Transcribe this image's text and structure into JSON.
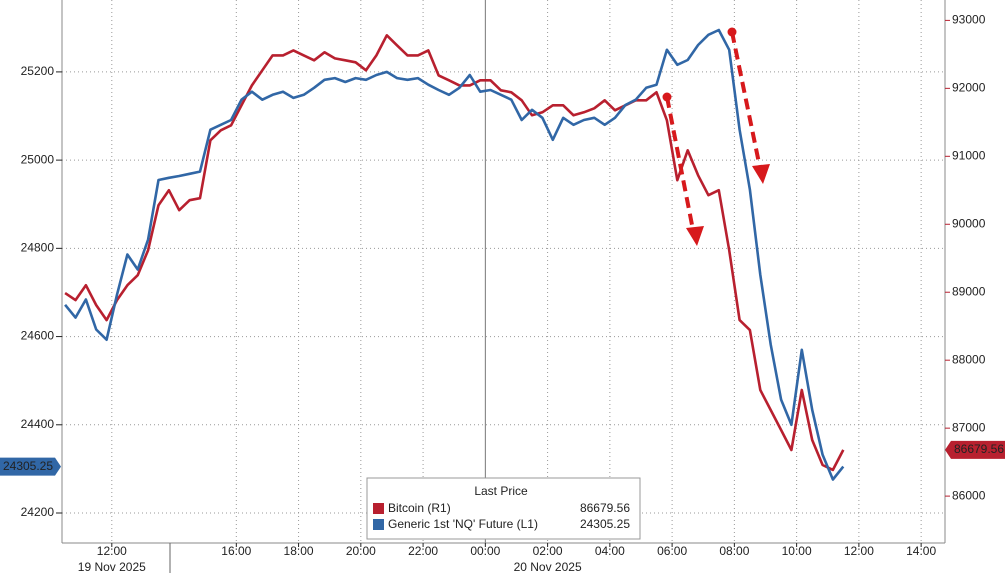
{
  "chart_data": {
    "type": "line",
    "x": [
      "2025-11-19 10:30",
      "2025-11-19 10:50",
      "2025-11-19 11:10",
      "2025-11-19 11:30",
      "2025-11-19 11:50",
      "2025-11-19 12:10",
      "2025-11-19 12:30",
      "2025-11-19 12:50",
      "2025-11-19 13:10",
      "2025-11-19 13:30",
      "2025-11-19 13:50",
      "2025-11-19 14:10",
      "2025-11-19 14:30",
      "2025-11-19 14:50",
      "2025-11-19 15:10",
      "2025-11-19 15:30",
      "2025-11-19 15:50",
      "2025-11-19 16:10",
      "2025-11-19 16:30",
      "2025-11-19 16:50",
      "2025-11-19 17:10",
      "2025-11-19 17:30",
      "2025-11-19 17:50",
      "2025-11-19 18:10",
      "2025-11-19 18:30",
      "2025-11-19 18:50",
      "2025-11-19 19:10",
      "2025-11-19 19:30",
      "2025-11-19 19:50",
      "2025-11-19 20:10",
      "2025-11-19 20:30",
      "2025-11-19 20:50",
      "2025-11-19 21:10",
      "2025-11-19 21:30",
      "2025-11-19 21:50",
      "2025-11-19 22:10",
      "2025-11-19 22:30",
      "2025-11-19 22:50",
      "2025-11-19 23:10",
      "2025-11-19 23:30",
      "2025-11-19 23:50",
      "2025-11-20 00:10",
      "2025-11-20 00:30",
      "2025-11-20 00:50",
      "2025-11-20 01:10",
      "2025-11-20 01:30",
      "2025-11-20 01:50",
      "2025-11-20 02:10",
      "2025-11-20 02:30",
      "2025-11-20 02:50",
      "2025-11-20 03:10",
      "2025-11-20 03:30",
      "2025-11-20 03:50",
      "2025-11-20 04:10",
      "2025-11-20 04:30",
      "2025-11-20 04:50",
      "2025-11-20 05:10",
      "2025-11-20 05:30",
      "2025-11-20 05:50",
      "2025-11-20 06:10",
      "2025-11-20 06:30",
      "2025-11-20 06:50",
      "2025-11-20 07:10",
      "2025-11-20 07:30",
      "2025-11-20 07:50",
      "2025-11-20 08:10",
      "2025-11-20 08:30",
      "2025-11-20 08:50",
      "2025-11-20 09:10",
      "2025-11-20 09:30",
      "2025-11-20 09:50",
      "2025-11-20 10:10",
      "2025-11-20 10:30",
      "2025-11-20 10:50",
      "2025-11-20 11:10",
      "2025-11-20 11:30"
    ],
    "series": [
      {
        "name": "Bitcoin (R1)",
        "color": "#b8202f",
        "axis": "y2",
        "values": [
          88987,
          88884,
          89104,
          88810,
          88590,
          88884,
          89104,
          89251,
          89619,
          90280,
          90501,
          90207,
          90354,
          90383,
          91236,
          91383,
          91456,
          91750,
          92044,
          92265,
          92485,
          92485,
          92559,
          92485,
          92412,
          92530,
          92441,
          92412,
          92383,
          92265,
          92485,
          92780,
          92632,
          92485,
          92485,
          92559,
          92191,
          92118,
          92044,
          92044,
          92118,
          92118,
          91971,
          91942,
          91824,
          91603,
          91648,
          91750,
          91750,
          91603,
          91648,
          91706,
          91824,
          91677,
          91750,
          91824,
          91824,
          91942,
          91530,
          90648,
          91089,
          90721,
          90427,
          90501,
          89619,
          88590,
          88443,
          87561,
          87267,
          86973,
          86679,
          87561,
          86826,
          86458,
          86385,
          86679.56
        ]
      },
      {
        "name": "Generic 1st 'NQ' Future (L1)",
        "color": "#3167a6",
        "axis": "y",
        "values": [
          24672,
          24643,
          24684,
          24616,
          24593,
          24695,
          24786,
          24752,
          24820,
          24955,
          24960,
          24964,
          24969,
          24974,
          25069,
          25080,
          25091,
          25137,
          25155,
          25137,
          25148,
          25155,
          25141,
          25148,
          25164,
          25182,
          25186,
          25177,
          25186,
          25182,
          25193,
          25200,
          25186,
          25182,
          25186,
          25171,
          25159,
          25148,
          25164,
          25193,
          25155,
          25159,
          25148,
          25137,
          25091,
          25114,
          25096,
          25046,
          25096,
          25080,
          25091,
          25096,
          25080,
          25096,
          25125,
          25137,
          25164,
          25171,
          25250,
          25216,
          25227,
          25261,
          25284,
          25295,
          25250,
          25069,
          24933,
          24740,
          24582,
          24457,
          24400,
          24570,
          24434,
          24332,
          24276,
          24305.25
        ]
      }
    ],
    "xlim": [
      "2025-11-19 10:24",
      "2025-11-20 14:46"
    ],
    "xticks": [
      {
        "value": "2025-11-19 12:00",
        "label": "12:00"
      },
      {
        "value": "2025-11-19 16:00",
        "label": "16:00"
      },
      {
        "value": "2025-11-19 18:00",
        "label": "18:00"
      },
      {
        "value": "2025-11-19 20:00",
        "label": "20:00"
      },
      {
        "value": "2025-11-19 22:00",
        "label": "22:00"
      },
      {
        "value": "2025-11-20 00:00",
        "label": "00:00"
      },
      {
        "value": "2025-11-20 02:00",
        "label": "02:00"
      },
      {
        "value": "2025-11-20 04:00",
        "label": "04:00"
      },
      {
        "value": "2025-11-20 06:00",
        "label": "06:00"
      },
      {
        "value": "2025-11-20 08:00",
        "label": "08:00"
      },
      {
        "value": "2025-11-20 10:00",
        "label": "10:00"
      },
      {
        "value": "2025-11-20 12:00",
        "label": "12:00"
      },
      {
        "value": "2025-11-20 14:00",
        "label": "14:00"
      }
    ],
    "date_labels": [
      {
        "value": "2025-11-19 12:00",
        "label": "19 Nov 2025"
      },
      {
        "value": "2025-11-20 02:00",
        "label": "20 Nov 2025"
      }
    ],
    "ylim": [
      24132,
      25363
    ],
    "yticks": [
      24200,
      24400,
      24600,
      24800,
      25000,
      25200
    ],
    "y2lim": [
      85310,
      93300
    ],
    "y2ticks": [
      86000,
      87000,
      88000,
      89000,
      90000,
      91000,
      92000,
      93000
    ],
    "grid": true,
    "legend_title": "Last Price"
  }
}
